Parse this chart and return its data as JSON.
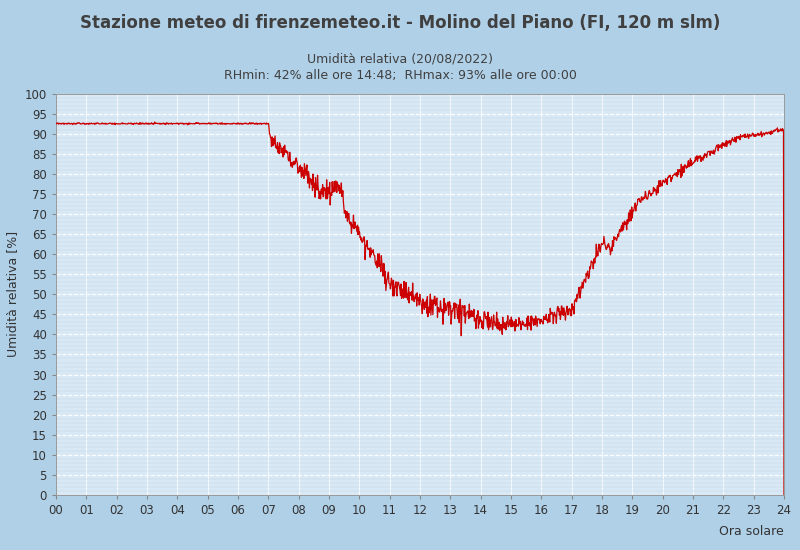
{
  "title": "Stazione meteo di firenzemeteo.it - Molino del Piano (FI, 120 m slm)",
  "subtitle1": "Umidità relativa (20/08/2022)",
  "subtitle2": "RHmin: 42% alle ore 14:48;  RHmax: 93% alle ore 00:00",
  "xlabel": "Ora solare",
  "ylabel": "Umidità relativa [%]",
  "bg_color": "#b0d0e8",
  "plot_bg_color": "#d8e8f4",
  "line_color": "#cc0000",
  "grid_major_color": "#ffffff",
  "grid_minor_color": "#c0d4e4",
  "ylim": [
    0,
    100
  ],
  "xlim": [
    0,
    24
  ],
  "yticks": [
    0,
    5,
    10,
    15,
    20,
    25,
    30,
    35,
    40,
    45,
    50,
    55,
    60,
    65,
    70,
    75,
    80,
    85,
    90,
    95,
    100
  ],
  "xticks": [
    0,
    1,
    2,
    3,
    4,
    5,
    6,
    7,
    8,
    9,
    10,
    11,
    12,
    13,
    14,
    15,
    16,
    17,
    18,
    19,
    20,
    21,
    22,
    23,
    24
  ],
  "xtick_labels": [
    "00",
    "01",
    "02",
    "03",
    "04",
    "05",
    "06",
    "07",
    "08",
    "09",
    "10",
    "11",
    "12",
    "13",
    "14",
    "15",
    "16",
    "17",
    "18",
    "19",
    "20",
    "21",
    "22",
    "23",
    "24"
  ],
  "title_fontsize": 12,
  "subtitle_fontsize": 9,
  "axis_label_fontsize": 9,
  "tick_fontsize": 8.5
}
